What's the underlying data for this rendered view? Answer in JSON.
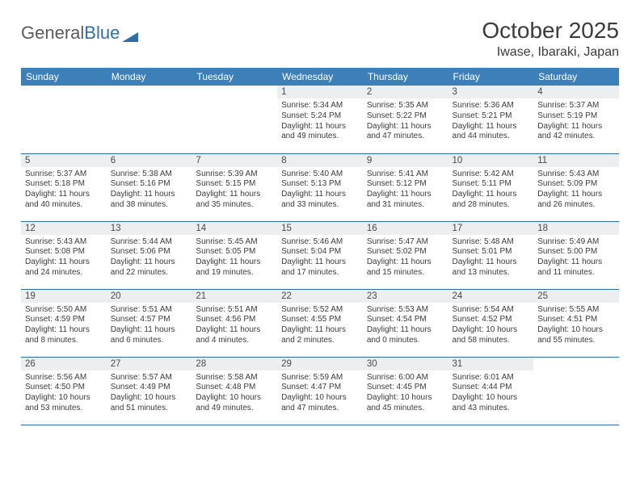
{
  "brand": {
    "part1": "General",
    "part2": "Blue"
  },
  "title": "October 2025",
  "location": "Iwase, Ibaraki, Japan",
  "colors": {
    "header_bg": "#3d7fb8",
    "header_fg": "#ffffff",
    "rule": "#2f6fa7",
    "daynum_bg": "#eceef0",
    "text": "#3b3b3b",
    "page_bg": "#ffffff"
  },
  "typography": {
    "title_pt": 28,
    "location_pt": 16,
    "th_pt": 12,
    "daynum_pt": 11.5,
    "body_pt": 10
  },
  "weekdays": [
    "Sunday",
    "Monday",
    "Tuesday",
    "Wednesday",
    "Thursday",
    "Friday",
    "Saturday"
  ],
  "weeks": [
    [
      {
        "n": "",
        "sr": "",
        "ss": "",
        "dl": "",
        "empty": true
      },
      {
        "n": "",
        "sr": "",
        "ss": "",
        "dl": "",
        "empty": true
      },
      {
        "n": "",
        "sr": "",
        "ss": "",
        "dl": "",
        "empty": true
      },
      {
        "n": "1",
        "sr": "Sunrise: 5:34 AM",
        "ss": "Sunset: 5:24 PM",
        "dl": "Daylight: 11 hours and 49 minutes."
      },
      {
        "n": "2",
        "sr": "Sunrise: 5:35 AM",
        "ss": "Sunset: 5:22 PM",
        "dl": "Daylight: 11 hours and 47 minutes."
      },
      {
        "n": "3",
        "sr": "Sunrise: 5:36 AM",
        "ss": "Sunset: 5:21 PM",
        "dl": "Daylight: 11 hours and 44 minutes."
      },
      {
        "n": "4",
        "sr": "Sunrise: 5:37 AM",
        "ss": "Sunset: 5:19 PM",
        "dl": "Daylight: 11 hours and 42 minutes."
      }
    ],
    [
      {
        "n": "5",
        "sr": "Sunrise: 5:37 AM",
        "ss": "Sunset: 5:18 PM",
        "dl": "Daylight: 11 hours and 40 minutes."
      },
      {
        "n": "6",
        "sr": "Sunrise: 5:38 AM",
        "ss": "Sunset: 5:16 PM",
        "dl": "Daylight: 11 hours and 38 minutes."
      },
      {
        "n": "7",
        "sr": "Sunrise: 5:39 AM",
        "ss": "Sunset: 5:15 PM",
        "dl": "Daylight: 11 hours and 35 minutes."
      },
      {
        "n": "8",
        "sr": "Sunrise: 5:40 AM",
        "ss": "Sunset: 5:13 PM",
        "dl": "Daylight: 11 hours and 33 minutes."
      },
      {
        "n": "9",
        "sr": "Sunrise: 5:41 AM",
        "ss": "Sunset: 5:12 PM",
        "dl": "Daylight: 11 hours and 31 minutes."
      },
      {
        "n": "10",
        "sr": "Sunrise: 5:42 AM",
        "ss": "Sunset: 5:11 PM",
        "dl": "Daylight: 11 hours and 28 minutes."
      },
      {
        "n": "11",
        "sr": "Sunrise: 5:43 AM",
        "ss": "Sunset: 5:09 PM",
        "dl": "Daylight: 11 hours and 26 minutes."
      }
    ],
    [
      {
        "n": "12",
        "sr": "Sunrise: 5:43 AM",
        "ss": "Sunset: 5:08 PM",
        "dl": "Daylight: 11 hours and 24 minutes."
      },
      {
        "n": "13",
        "sr": "Sunrise: 5:44 AM",
        "ss": "Sunset: 5:06 PM",
        "dl": "Daylight: 11 hours and 22 minutes."
      },
      {
        "n": "14",
        "sr": "Sunrise: 5:45 AM",
        "ss": "Sunset: 5:05 PM",
        "dl": "Daylight: 11 hours and 19 minutes."
      },
      {
        "n": "15",
        "sr": "Sunrise: 5:46 AM",
        "ss": "Sunset: 5:04 PM",
        "dl": "Daylight: 11 hours and 17 minutes."
      },
      {
        "n": "16",
        "sr": "Sunrise: 5:47 AM",
        "ss": "Sunset: 5:02 PM",
        "dl": "Daylight: 11 hours and 15 minutes."
      },
      {
        "n": "17",
        "sr": "Sunrise: 5:48 AM",
        "ss": "Sunset: 5:01 PM",
        "dl": "Daylight: 11 hours and 13 minutes."
      },
      {
        "n": "18",
        "sr": "Sunrise: 5:49 AM",
        "ss": "Sunset: 5:00 PM",
        "dl": "Daylight: 11 hours and 11 minutes."
      }
    ],
    [
      {
        "n": "19",
        "sr": "Sunrise: 5:50 AM",
        "ss": "Sunset: 4:59 PM",
        "dl": "Daylight: 11 hours and 8 minutes."
      },
      {
        "n": "20",
        "sr": "Sunrise: 5:51 AM",
        "ss": "Sunset: 4:57 PM",
        "dl": "Daylight: 11 hours and 6 minutes."
      },
      {
        "n": "21",
        "sr": "Sunrise: 5:51 AM",
        "ss": "Sunset: 4:56 PM",
        "dl": "Daylight: 11 hours and 4 minutes."
      },
      {
        "n": "22",
        "sr": "Sunrise: 5:52 AM",
        "ss": "Sunset: 4:55 PM",
        "dl": "Daylight: 11 hours and 2 minutes."
      },
      {
        "n": "23",
        "sr": "Sunrise: 5:53 AM",
        "ss": "Sunset: 4:54 PM",
        "dl": "Daylight: 11 hours and 0 minutes."
      },
      {
        "n": "24",
        "sr": "Sunrise: 5:54 AM",
        "ss": "Sunset: 4:52 PM",
        "dl": "Daylight: 10 hours and 58 minutes."
      },
      {
        "n": "25",
        "sr": "Sunrise: 5:55 AM",
        "ss": "Sunset: 4:51 PM",
        "dl": "Daylight: 10 hours and 55 minutes."
      }
    ],
    [
      {
        "n": "26",
        "sr": "Sunrise: 5:56 AM",
        "ss": "Sunset: 4:50 PM",
        "dl": "Daylight: 10 hours and 53 minutes."
      },
      {
        "n": "27",
        "sr": "Sunrise: 5:57 AM",
        "ss": "Sunset: 4:49 PM",
        "dl": "Daylight: 10 hours and 51 minutes."
      },
      {
        "n": "28",
        "sr": "Sunrise: 5:58 AM",
        "ss": "Sunset: 4:48 PM",
        "dl": "Daylight: 10 hours and 49 minutes."
      },
      {
        "n": "29",
        "sr": "Sunrise: 5:59 AM",
        "ss": "Sunset: 4:47 PM",
        "dl": "Daylight: 10 hours and 47 minutes."
      },
      {
        "n": "30",
        "sr": "Sunrise: 6:00 AM",
        "ss": "Sunset: 4:45 PM",
        "dl": "Daylight: 10 hours and 45 minutes."
      },
      {
        "n": "31",
        "sr": "Sunrise: 6:01 AM",
        "ss": "Sunset: 4:44 PM",
        "dl": "Daylight: 10 hours and 43 minutes."
      },
      {
        "n": "",
        "sr": "",
        "ss": "",
        "dl": "",
        "empty": true
      }
    ]
  ]
}
